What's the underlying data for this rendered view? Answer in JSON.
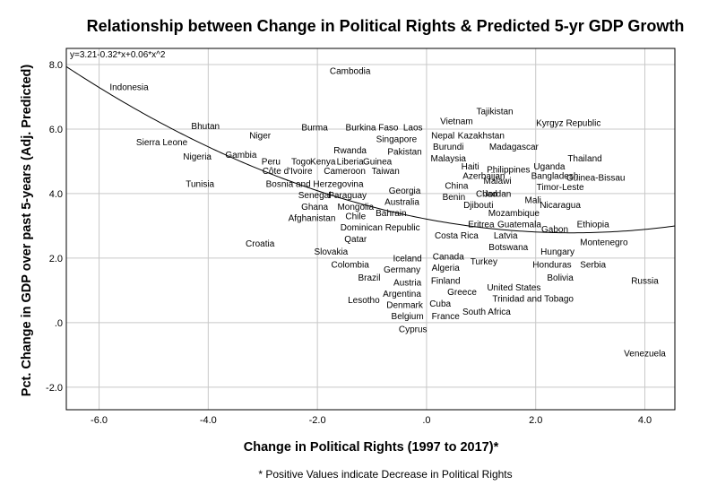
{
  "chart_data": {
    "type": "scatter",
    "title": "Relationship between Change in Political Rights & Predicted 5-yr GDP Growth",
    "xlabel": "Change in Political Rights (1997 to 2017)*",
    "ylabel": "Pct. Change in GDP over past 5-years (Adj. Predicted)",
    "note": "* Positive Values indicate Decrease in Political Rights",
    "fit_equation": "y=3.21-0.32*x+0.06*x^2",
    "fit": {
      "intercept": 3.21,
      "linear": -0.32,
      "quadratic": 0.06
    },
    "xlim": [
      -6.6,
      4.55
    ],
    "ylim": [
      -2.7,
      8.5
    ],
    "x_ticks": [
      -6,
      -4,
      -2,
      0,
      2,
      4
    ],
    "x_tick_labels": [
      "-6.0",
      "-4.0",
      "-2.0",
      ".0",
      "2.0",
      "4.0"
    ],
    "y_ticks": [
      -2,
      0,
      2,
      4,
      6,
      8
    ],
    "y_tick_labels": [
      "-2.0",
      ".0",
      "2.0",
      "4.0",
      "6.0",
      "8.0"
    ],
    "grid": true,
    "points": [
      {
        "label": "Cambodia",
        "x": -1.4,
        "y": 7.8
      },
      {
        "label": "Indonesia",
        "x": -5.45,
        "y": 7.3
      },
      {
        "label": "Tajikistan",
        "x": 1.25,
        "y": 6.55
      },
      {
        "label": "Vietnam",
        "x": 0.55,
        "y": 6.25
      },
      {
        "label": "Kyrgyz Republic",
        "x": 2.6,
        "y": 6.2
      },
      {
        "label": "Bhutan",
        "x": -4.05,
        "y": 6.1
      },
      {
        "label": "Burma",
        "x": -2.05,
        "y": 6.05
      },
      {
        "label": "Burkina Faso",
        "x": -1.0,
        "y": 6.05
      },
      {
        "label": "Laos",
        "x": -0.25,
        "y": 6.05
      },
      {
        "label": "Niger",
        "x": -3.05,
        "y": 5.8
      },
      {
        "label": "Nepal",
        "x": 0.3,
        "y": 5.8
      },
      {
        "label": "Kazakhstan",
        "x": 1.0,
        "y": 5.8
      },
      {
        "label": "Singapore",
        "x": -0.55,
        "y": 5.7
      },
      {
        "label": "Sierra Leone",
        "x": -4.85,
        "y": 5.6
      },
      {
        "label": "Madagascar",
        "x": 1.6,
        "y": 5.45
      },
      {
        "label": "Burundi",
        "x": 0.4,
        "y": 5.45
      },
      {
        "label": "Rwanda",
        "x": -1.4,
        "y": 5.35
      },
      {
        "label": "Pakistan",
        "x": -0.4,
        "y": 5.3
      },
      {
        "label": "Gambia",
        "x": -3.4,
        "y": 5.2
      },
      {
        "label": "Nigeria",
        "x": -4.2,
        "y": 5.15
      },
      {
        "label": "Malaysia",
        "x": 0.4,
        "y": 5.1
      },
      {
        "label": "Thailand",
        "x": 2.9,
        "y": 5.1
      },
      {
        "label": "Peru",
        "x": -2.85,
        "y": 5.0
      },
      {
        "label": "Togo",
        "x": -2.3,
        "y": 5.0
      },
      {
        "label": "Kenya",
        "x": -1.9,
        "y": 5.0
      },
      {
        "label": "Liberia",
        "x": -1.4,
        "y": 5.0
      },
      {
        "label": "Guinea",
        "x": -0.9,
        "y": 5.0
      },
      {
        "label": "Haiti",
        "x": 0.8,
        "y": 4.85
      },
      {
        "label": "Uganda",
        "x": 2.25,
        "y": 4.85
      },
      {
        "label": "Philippines",
        "x": 1.5,
        "y": 4.75
      },
      {
        "label": "Côte d'Ivoire",
        "x": -2.55,
        "y": 4.7
      },
      {
        "label": "Cameroon",
        "x": -1.5,
        "y": 4.7
      },
      {
        "label": "Taiwan",
        "x": -0.75,
        "y": 4.7
      },
      {
        "label": "Azerbaijan",
        "x": 1.05,
        "y": 4.55
      },
      {
        "label": "Bangladesh",
        "x": 2.35,
        "y": 4.55
      },
      {
        "label": "Guinea-Bissau",
        "x": 3.1,
        "y": 4.5
      },
      {
        "label": "Malawi",
        "x": 1.3,
        "y": 4.4
      },
      {
        "label": "Bosnia and Herzegovina",
        "x": -2.05,
        "y": 4.3
      },
      {
        "label": "Tunisia",
        "x": -4.15,
        "y": 4.3
      },
      {
        "label": "China",
        "x": 0.55,
        "y": 4.25
      },
      {
        "label": "Timor-Leste",
        "x": 2.45,
        "y": 4.2
      },
      {
        "label": "Georgia",
        "x": -0.4,
        "y": 4.1
      },
      {
        "label": "Chad",
        "x": 1.1,
        "y": 4.0
      },
      {
        "label": "Jordan",
        "x": 1.3,
        "y": 4.0
      },
      {
        "label": "Senegal",
        "x": -2.05,
        "y": 3.95
      },
      {
        "label": "Paraguay",
        "x": -1.45,
        "y": 3.95
      },
      {
        "label": "Benin",
        "x": 0.5,
        "y": 3.9
      },
      {
        "label": "Mali",
        "x": 1.95,
        "y": 3.8
      },
      {
        "label": "Australia",
        "x": -0.45,
        "y": 3.75
      },
      {
        "label": "Djibouti",
        "x": 0.95,
        "y": 3.65
      },
      {
        "label": "Nicaragua",
        "x": 2.45,
        "y": 3.65
      },
      {
        "label": "Ghana",
        "x": -2.05,
        "y": 3.6
      },
      {
        "label": "Mongolia",
        "x": -1.3,
        "y": 3.6
      },
      {
        "label": "Mozambique",
        "x": 1.6,
        "y": 3.4
      },
      {
        "label": "Bahrain",
        "x": -0.65,
        "y": 3.4
      },
      {
        "label": "Chile",
        "x": -1.3,
        "y": 3.3
      },
      {
        "label": "Afghanistan",
        "x": -2.1,
        "y": 3.25
      },
      {
        "label": "Eritrea",
        "x": 1.0,
        "y": 3.05
      },
      {
        "label": "Guatemala",
        "x": 1.7,
        "y": 3.05
      },
      {
        "label": "Ethiopia",
        "x": 3.05,
        "y": 3.05
      },
      {
        "label": "Dominican Republic",
        "x": -0.85,
        "y": 2.95
      },
      {
        "label": "Gabon",
        "x": 2.35,
        "y": 2.9
      },
      {
        "label": "Costa Rica",
        "x": 0.55,
        "y": 2.7
      },
      {
        "label": "Latvia",
        "x": 1.45,
        "y": 2.7
      },
      {
        "label": "Qatar",
        "x": -1.3,
        "y": 2.6
      },
      {
        "label": "Montenegro",
        "x": 3.25,
        "y": 2.5
      },
      {
        "label": "Croatia",
        "x": -3.05,
        "y": 2.45
      },
      {
        "label": "Botswana",
        "x": 1.5,
        "y": 2.35
      },
      {
        "label": "Hungary",
        "x": 2.4,
        "y": 2.2
      },
      {
        "label": "Slovakia",
        "x": -1.75,
        "y": 2.2
      },
      {
        "label": "Canada",
        "x": 0.4,
        "y": 2.05
      },
      {
        "label": "Iceland",
        "x": -0.35,
        "y": 2.0
      },
      {
        "label": "Turkey",
        "x": 1.05,
        "y": 1.9
      },
      {
        "label": "Colombia",
        "x": -1.4,
        "y": 1.8
      },
      {
        "label": "Honduras",
        "x": 2.3,
        "y": 1.8
      },
      {
        "label": "Serbia",
        "x": 3.05,
        "y": 1.8
      },
      {
        "label": "Algeria",
        "x": 0.35,
        "y": 1.7
      },
      {
        "label": "Germany",
        "x": -0.45,
        "y": 1.65
      },
      {
        "label": "Bolivia",
        "x": 2.45,
        "y": 1.4
      },
      {
        "label": "Russia",
        "x": 4.0,
        "y": 1.3
      },
      {
        "label": "Brazil",
        "x": -1.05,
        "y": 1.4
      },
      {
        "label": "Finland",
        "x": 0.35,
        "y": 1.3
      },
      {
        "label": "Austria",
        "x": -0.35,
        "y": 1.25
      },
      {
        "label": "United States",
        "x": 1.6,
        "y": 1.1
      },
      {
        "label": "Greece",
        "x": 0.65,
        "y": 0.95
      },
      {
        "label": "Argentina",
        "x": -0.45,
        "y": 0.9
      },
      {
        "label": "Trinidad and Tobago",
        "x": 1.95,
        "y": 0.75
      },
      {
        "label": "Lesotho",
        "x": -1.15,
        "y": 0.7
      },
      {
        "label": "Cuba",
        "x": 0.25,
        "y": 0.6
      },
      {
        "label": "Denmark",
        "x": -0.4,
        "y": 0.55
      },
      {
        "label": "South Africa",
        "x": 1.1,
        "y": 0.35
      },
      {
        "label": "Belgium",
        "x": -0.35,
        "y": 0.2
      },
      {
        "label": "France",
        "x": 0.35,
        "y": 0.2
      },
      {
        "label": "Cyprus",
        "x": -0.25,
        "y": -0.2
      },
      {
        "label": "Venezuela",
        "x": 4.0,
        "y": -0.95
      }
    ]
  }
}
